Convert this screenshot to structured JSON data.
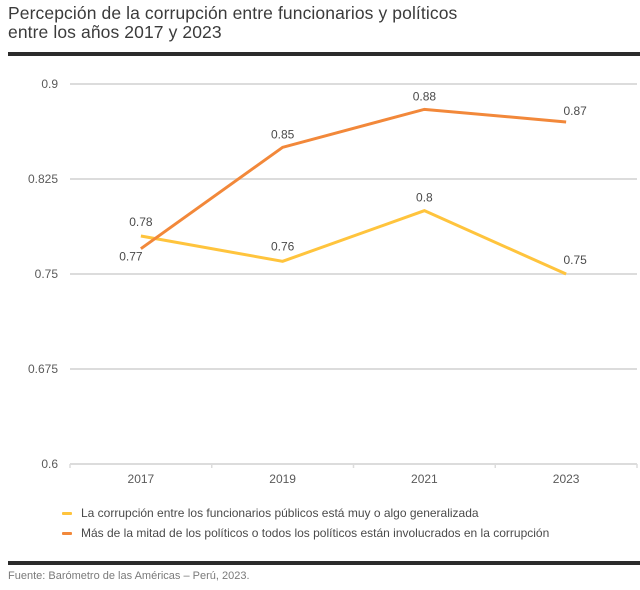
{
  "title": {
    "line1": "Percepción de la corrupción entre funcionarios y políticos",
    "line2": "entre los años 2017 y 2023"
  },
  "source": "Fuente: Barómetro de las Américas – Perú, 2023.",
  "colors": {
    "series_yellow": "#FFC43D",
    "series_orange": "#F2883A",
    "grid": "#DCDCDC",
    "text": "#4a4a4a",
    "rule": "#2b2b2b"
  },
  "chart_data": {
    "type": "line",
    "title": "Percepción de la corrupción entre funcionarios y políticos entre los años 2017 y 2023",
    "xlabel": "",
    "ylabel": "",
    "categories": [
      "2017",
      "2019",
      "2021",
      "2023"
    ],
    "ylim": [
      0.6,
      0.9
    ],
    "yticks": [
      0.6,
      0.675,
      0.75,
      0.825,
      0.9
    ],
    "ytick_labels": [
      "0.6",
      "0.675",
      "0.75",
      "0.825",
      "0.9"
    ],
    "grid": true,
    "legend_position": "bottom-left",
    "series": [
      {
        "name": "La corrupción entre los funcionarios públicos está muy o algo generalizada",
        "color": "#FFC43D",
        "values": [
          0.78,
          0.76,
          0.8,
          0.75
        ],
        "labels": [
          "0.78",
          "0.76",
          "0.8",
          "0.75"
        ]
      },
      {
        "name": "Más de la mitad de los políticos o todos los políticos están involucrados en la corrupción",
        "color": "#F2883A",
        "values": [
          0.77,
          0.85,
          0.88,
          0.87
        ],
        "labels": [
          "0.77",
          "0.85",
          "0.88",
          "0.87"
        ]
      }
    ]
  }
}
